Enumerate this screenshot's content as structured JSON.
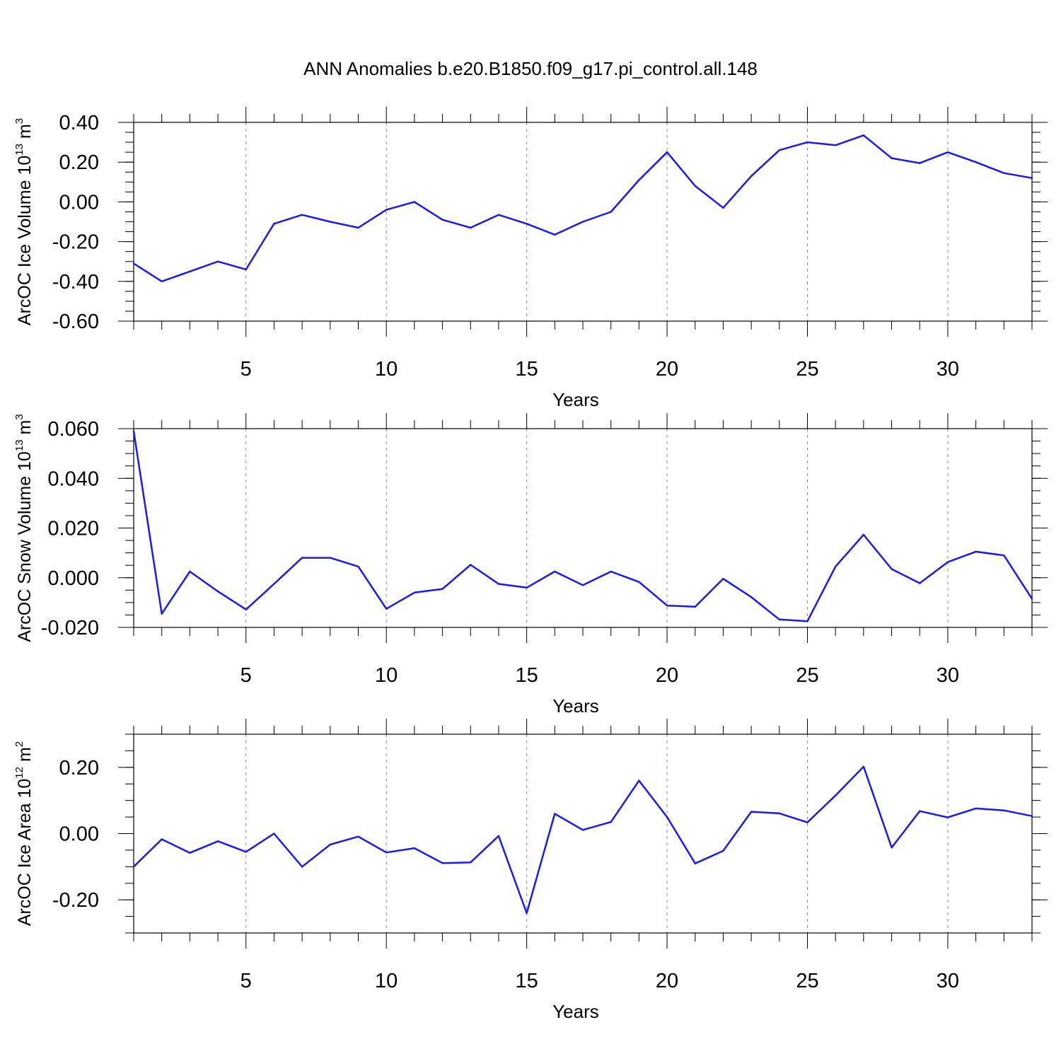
{
  "title": "ANN Anomalies b.e20.B1850.f09_g17.pi_control.all.148",
  "colors": {
    "series": "#1a1aee",
    "axis": "#000000",
    "grid": "#8a8a8a"
  },
  "chart_data": [
    {
      "type": "line",
      "xlabel": "Years",
      "ylabel": {
        "prefix": "ArcOC Ice Volume 10",
        "sup1": "13",
        "mid": " m",
        "sup2": "3"
      },
      "xlim": [
        1,
        33
      ],
      "ylim": [
        -0.6,
        0.4
      ],
      "x_ticks": [
        "5",
        "10",
        "15",
        "20",
        "25",
        "30"
      ],
      "y_ticks": [
        "-0.60",
        "-0.40",
        "-0.20",
        "0.00",
        "0.20",
        "0.40"
      ],
      "grid": "vertical dashed at major x ticks",
      "x": [
        1,
        2,
        3,
        4,
        5,
        6,
        7,
        8,
        9,
        10,
        11,
        12,
        13,
        14,
        15,
        16,
        17,
        18,
        19,
        20,
        21,
        22,
        23,
        24,
        25,
        26,
        27,
        28,
        29,
        30,
        31,
        32,
        33
      ],
      "values": [
        -0.31,
        -0.4,
        -0.35,
        -0.3,
        -0.34,
        -0.11,
        -0.065,
        -0.1,
        -0.13,
        -0.04,
        0.0,
        -0.09,
        -0.13,
        -0.065,
        -0.11,
        -0.165,
        -0.1,
        -0.05,
        0.11,
        0.25,
        0.08,
        -0.03,
        0.13,
        0.26,
        0.3,
        0.285,
        0.335,
        0.22,
        0.195,
        0.25,
        0.2,
        0.145,
        0.12
      ]
    },
    {
      "type": "line",
      "xlabel": "Years",
      "ylabel": {
        "prefix": "ArcOC Snow Volume 10",
        "sup1": "13",
        "mid": " m",
        "sup2": "3"
      },
      "xlim": [
        1,
        33
      ],
      "ylim": [
        -0.02,
        0.06
      ],
      "x_ticks": [
        "5",
        "10",
        "15",
        "20",
        "25",
        "30"
      ],
      "y_ticks": [
        "-0.020",
        "0.000",
        "0.020",
        "0.040",
        "0.060"
      ],
      "grid": "vertical dashed at major x ticks",
      "x": [
        1,
        2,
        3,
        4,
        5,
        6,
        7,
        8,
        9,
        10,
        11,
        12,
        13,
        14,
        15,
        16,
        17,
        18,
        19,
        20,
        21,
        22,
        23,
        24,
        25,
        26,
        27,
        28,
        29,
        30,
        31,
        32,
        33
      ],
      "values": [
        0.059,
        -0.0145,
        0.0025,
        -0.0055,
        -0.0128,
        -0.0025,
        0.008,
        0.008,
        0.0045,
        -0.0125,
        -0.006,
        -0.0045,
        0.0052,
        -0.0025,
        -0.004,
        0.0025,
        -0.003,
        0.0025,
        -0.0017,
        -0.0112,
        -0.0117,
        -0.0004,
        -0.0078,
        -0.0168,
        -0.0175,
        0.0045,
        0.0173,
        0.0035,
        -0.0022,
        0.0063,
        0.0105,
        0.009,
        -0.0085
      ]
    },
    {
      "type": "line",
      "xlabel": "Years",
      "ylabel": {
        "prefix": "ArcOC Ice Area 10",
        "sup1": "12",
        "mid": " m",
        "sup2": "2"
      },
      "xlim": [
        1,
        33
      ],
      "ylim": [
        -0.3,
        0.3
      ],
      "x_ticks": [
        "5",
        "10",
        "15",
        "20",
        "25",
        "30"
      ],
      "y_ticks": [
        "-0.20",
        "0.00",
        "0.20"
      ],
      "grid": "vertical dashed at major x ticks",
      "x": [
        1,
        2,
        3,
        4,
        5,
        6,
        7,
        8,
        9,
        10,
        11,
        12,
        13,
        14,
        15,
        16,
        17,
        18,
        19,
        20,
        21,
        22,
        23,
        24,
        25,
        26,
        27,
        28,
        29,
        30,
        31,
        32,
        33
      ],
      "values": [
        -0.1,
        -0.017,
        -0.058,
        -0.023,
        -0.055,
        0.0,
        -0.1,
        -0.033,
        -0.009,
        -0.057,
        -0.044,
        -0.089,
        -0.087,
        -0.007,
        -0.24,
        0.06,
        0.011,
        0.035,
        0.16,
        0.05,
        -0.09,
        -0.052,
        0.066,
        0.061,
        0.034,
        0.115,
        0.202,
        -0.042,
        0.068,
        0.049,
        0.076,
        0.07,
        0.053
      ]
    }
  ]
}
